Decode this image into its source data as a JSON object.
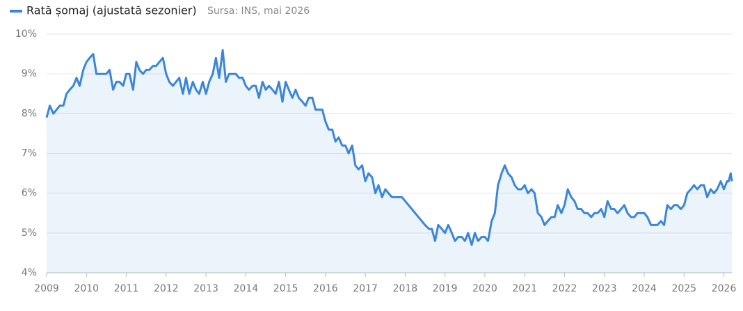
{
  "chart_data": {
    "type": "line",
    "source": "Sursa: INS, mai 2026",
    "x": [
      2009.0,
      2009.08,
      2009.17,
      2009.25,
      2009.33,
      2009.42,
      2009.5,
      2009.58,
      2009.67,
      2009.75,
      2009.83,
      2009.92,
      2010.0,
      2010.08,
      2010.17,
      2010.25,
      2010.33,
      2010.42,
      2010.5,
      2010.58,
      2010.67,
      2010.75,
      2010.83,
      2010.92,
      2011.0,
      2011.08,
      2011.17,
      2011.25,
      2011.33,
      2011.42,
      2011.5,
      2011.58,
      2011.67,
      2011.75,
      2011.83,
      2011.92,
      2012.0,
      2012.08,
      2012.17,
      2012.25,
      2012.33,
      2012.42,
      2012.5,
      2012.58,
      2012.67,
      2012.75,
      2012.83,
      2012.92,
      2013.0,
      2013.08,
      2013.17,
      2013.25,
      2013.33,
      2013.42,
      2013.5,
      2013.58,
      2013.67,
      2013.75,
      2013.83,
      2013.92,
      2014.0,
      2014.08,
      2014.17,
      2014.25,
      2014.33,
      2014.42,
      2014.5,
      2014.58,
      2014.67,
      2014.75,
      2014.83,
      2014.92,
      2015.0,
      2015.08,
      2015.17,
      2015.25,
      2015.33,
      2015.42,
      2015.5,
      2015.58,
      2015.67,
      2015.75,
      2015.83,
      2015.92,
      2016.0,
      2016.08,
      2016.17,
      2016.25,
      2016.33,
      2016.42,
      2016.5,
      2016.58,
      2016.67,
      2016.75,
      2016.83,
      2016.92,
      2017.0,
      2017.08,
      2017.17,
      2017.25,
      2017.33,
      2017.42,
      2017.5,
      2017.58,
      2017.67,
      2017.75,
      2017.92,
      2018.5,
      2018.6,
      2018.67,
      2018.75,
      2018.83,
      2018.92,
      2019.0,
      2019.08,
      2019.17,
      2019.25,
      2019.33,
      2019.42,
      2019.5,
      2019.58,
      2019.67,
      2019.75,
      2019.83,
      2019.92,
      2020.0,
      2020.08,
      2020.17,
      2020.25,
      2020.33,
      2020.42,
      2020.5,
      2020.58,
      2020.67,
      2020.75,
      2020.83,
      2020.92,
      2021.0,
      2021.08,
      2021.17,
      2021.25,
      2021.33,
      2021.42,
      2021.5,
      2021.58,
      2021.67,
      2021.75,
      2021.83,
      2021.92,
      2022.0,
      2022.08,
      2022.17,
      2022.25,
      2022.33,
      2022.42,
      2022.5,
      2022.58,
      2022.67,
      2022.75,
      2022.83,
      2022.92,
      2023.0,
      2023.08,
      2023.17,
      2023.25,
      2023.33,
      2023.42,
      2023.5,
      2023.58,
      2023.67,
      2023.75,
      2023.83,
      2023.92,
      2024.0,
      2024.08,
      2024.17,
      2024.25,
      2024.33,
      2024.42,
      2024.5,
      2024.58,
      2024.67,
      2024.75,
      2024.83,
      2024.92,
      2025.0,
      2025.08,
      2025.17,
      2025.25,
      2025.33,
      2025.42,
      2025.5,
      2025.58,
      2025.67,
      2025.75,
      2025.83,
      2025.92,
      2026.0,
      2026.08,
      2026.12,
      2026.17,
      2026.2
    ],
    "series": [
      {
        "name": "Rată șomaj (ajustată sezonier)",
        "color": "#3b86d8",
        "values": [
          7.9,
          8.2,
          8.0,
          8.1,
          8.2,
          8.2,
          8.5,
          8.6,
          8.7,
          8.9,
          8.7,
          9.1,
          9.3,
          9.4,
          9.5,
          9.0,
          9.0,
          9.0,
          9.0,
          9.1,
          8.6,
          8.8,
          8.8,
          8.7,
          9.0,
          9.0,
          8.6,
          9.3,
          9.1,
          9.0,
          9.1,
          9.1,
          9.2,
          9.2,
          9.3,
          9.4,
          9.0,
          8.8,
          8.7,
          8.8,
          8.9,
          8.5,
          8.9,
          8.5,
          8.8,
          8.6,
          8.5,
          8.8,
          8.5,
          8.8,
          9.0,
          9.4,
          8.9,
          9.6,
          8.8,
          9.0,
          9.0,
          9.0,
          8.9,
          8.9,
          8.7,
          8.6,
          8.7,
          8.7,
          8.4,
          8.8,
          8.6,
          8.7,
          8.6,
          8.5,
          8.8,
          8.3,
          8.8,
          8.6,
          8.4,
          8.6,
          8.4,
          8.3,
          8.2,
          8.4,
          8.4,
          8.1,
          8.1,
          8.1,
          7.8,
          7.6,
          7.6,
          7.3,
          7.4,
          7.2,
          7.2,
          7.0,
          7.2,
          6.7,
          6.6,
          6.7,
          6.3,
          6.5,
          6.4,
          6.0,
          6.2,
          5.9,
          6.1,
          6.0,
          5.9,
          5.9,
          5.9,
          5.2,
          5.1,
          5.1,
          4.8,
          5.2,
          5.1,
          5.0,
          5.2,
          5.0,
          4.8,
          4.9,
          4.9,
          4.8,
          5.0,
          4.7,
          5.0,
          4.8,
          4.9,
          4.9,
          4.8,
          5.3,
          5.5,
          6.2,
          6.5,
          6.7,
          6.5,
          6.4,
          6.2,
          6.1,
          6.1,
          6.2,
          6.0,
          6.1,
          6.0,
          5.5,
          5.4,
          5.2,
          5.3,
          5.4,
          5.4,
          5.7,
          5.5,
          5.7,
          6.1,
          5.9,
          5.8,
          5.6,
          5.6,
          5.5,
          5.5,
          5.4,
          5.5,
          5.5,
          5.6,
          5.4,
          5.8,
          5.6,
          5.6,
          5.5,
          5.6,
          5.7,
          5.5,
          5.4,
          5.4,
          5.5,
          5.5,
          5.5,
          5.4,
          5.2,
          5.2,
          5.2,
          5.3,
          5.2,
          5.7,
          5.6,
          5.7,
          5.7,
          5.6,
          5.7,
          6.0,
          6.1,
          6.2,
          6.1,
          6.2,
          6.2,
          5.9,
          6.1,
          6.0,
          6.1,
          6.3,
          6.1,
          6.3,
          6.3,
          6.5,
          6.3
        ]
      }
    ],
    "xlim": [
      2009,
      2026.2
    ],
    "xticks": [
      2009,
      2010,
      2011,
      2012,
      2013,
      2014,
      2015,
      2016,
      2017,
      2018,
      2019,
      2020,
      2021,
      2022,
      2023,
      2024,
      2025,
      2026
    ],
    "ylim": [
      4,
      10
    ],
    "yticks": [
      {
        "value": 4,
        "label": "4%"
      },
      {
        "value": 5,
        "label": "5%"
      },
      {
        "value": 6,
        "label": "6%"
      },
      {
        "value": 7,
        "label": "7%"
      },
      {
        "value": 8,
        "label": "8%"
      },
      {
        "value": 9,
        "label": "9%"
      },
      {
        "value": 10,
        "label": "10%"
      }
    ],
    "grid": true
  }
}
